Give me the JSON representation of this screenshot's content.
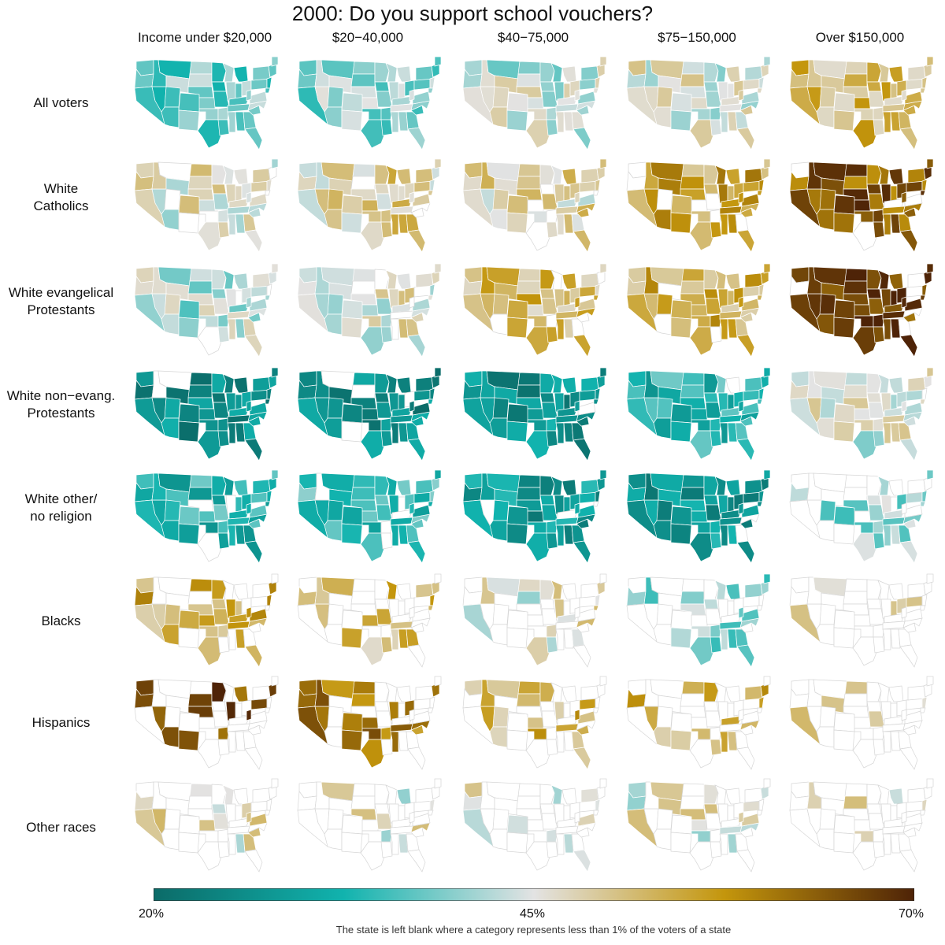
{
  "title": "2000: Do you support school vouchers?",
  "columns": [
    "Income under $20,000",
    "$20−40,000",
    "$40−75,000",
    "$75−150,000",
    "Over $150,000"
  ],
  "rows": [
    {
      "label_lines": [
        "All voters"
      ]
    },
    {
      "label_lines": [
        "White",
        "Catholics"
      ]
    },
    {
      "label_lines": [
        "White evangelical",
        "Protestants"
      ]
    },
    {
      "label_lines": [
        "White non−evang.",
        "Protestants"
      ]
    },
    {
      "label_lines": [
        "White other/",
        "no religion"
      ]
    },
    {
      "label_lines": [
        "Blacks"
      ]
    },
    {
      "label_lines": [
        "Hispanics"
      ]
    },
    {
      "label_lines": [
        "Other races"
      ]
    }
  ],
  "legend": {
    "min_label": "20%",
    "mid_label": "45%",
    "max_label": "70%",
    "note": "The state is left blank where a category represents less than 1% of the voters of a state",
    "colors": [
      "#0b6b68",
      "#11b3ae",
      "#e3e3e3",
      "#c4960c",
      "#4e2307"
    ]
  },
  "chart_data": {
    "type": "heatmap",
    "description_units": "percent supporting school vouchers, by state",
    "scale_range": [
      20,
      70
    ],
    "cells": [
      [
        {
          "base": 38
        },
        {
          "base": 40
        },
        {
          "base": 43
        },
        {
          "base": 45
        },
        {
          "base": 52
        }
      ],
      [
        {
          "base": 46
        },
        {
          "base": 49
        },
        {
          "base": 48
        },
        {
          "base": 55
        },
        {
          "base": 64
        }
      ],
      [
        {
          "base": 42
        },
        {
          "base": 46
        },
        {
          "base": 52
        },
        {
          "base": 54
        },
        {
          "base": 67
        }
      ],
      [
        {
          "base": 26
        },
        {
          "base": 26
        },
        {
          "base": 27
        },
        {
          "base": 33
        },
        {
          "base": 44
        }
      ],
      [
        {
          "base": 33
        },
        {
          "base": 34
        },
        {
          "base": 28
        },
        {
          "base": 28
        },
        {
          "base": 41
        }
      ],
      [
        {
          "base": 54
        },
        {
          "base": 52
        },
        {
          "base": 46
        },
        {
          "base": 39
        },
        {
          "base": 45
        }
      ],
      [
        {
          "base": 65
        },
        {
          "base": 60
        },
        {
          "base": 53
        },
        {
          "base": 54
        },
        {
          "base": 50
        }
      ],
      [
        {
          "base": 47
        },
        {
          "base": 46
        },
        {
          "base": 46
        },
        {
          "base": 46
        },
        {
          "base": 48
        }
      ]
    ]
  }
}
